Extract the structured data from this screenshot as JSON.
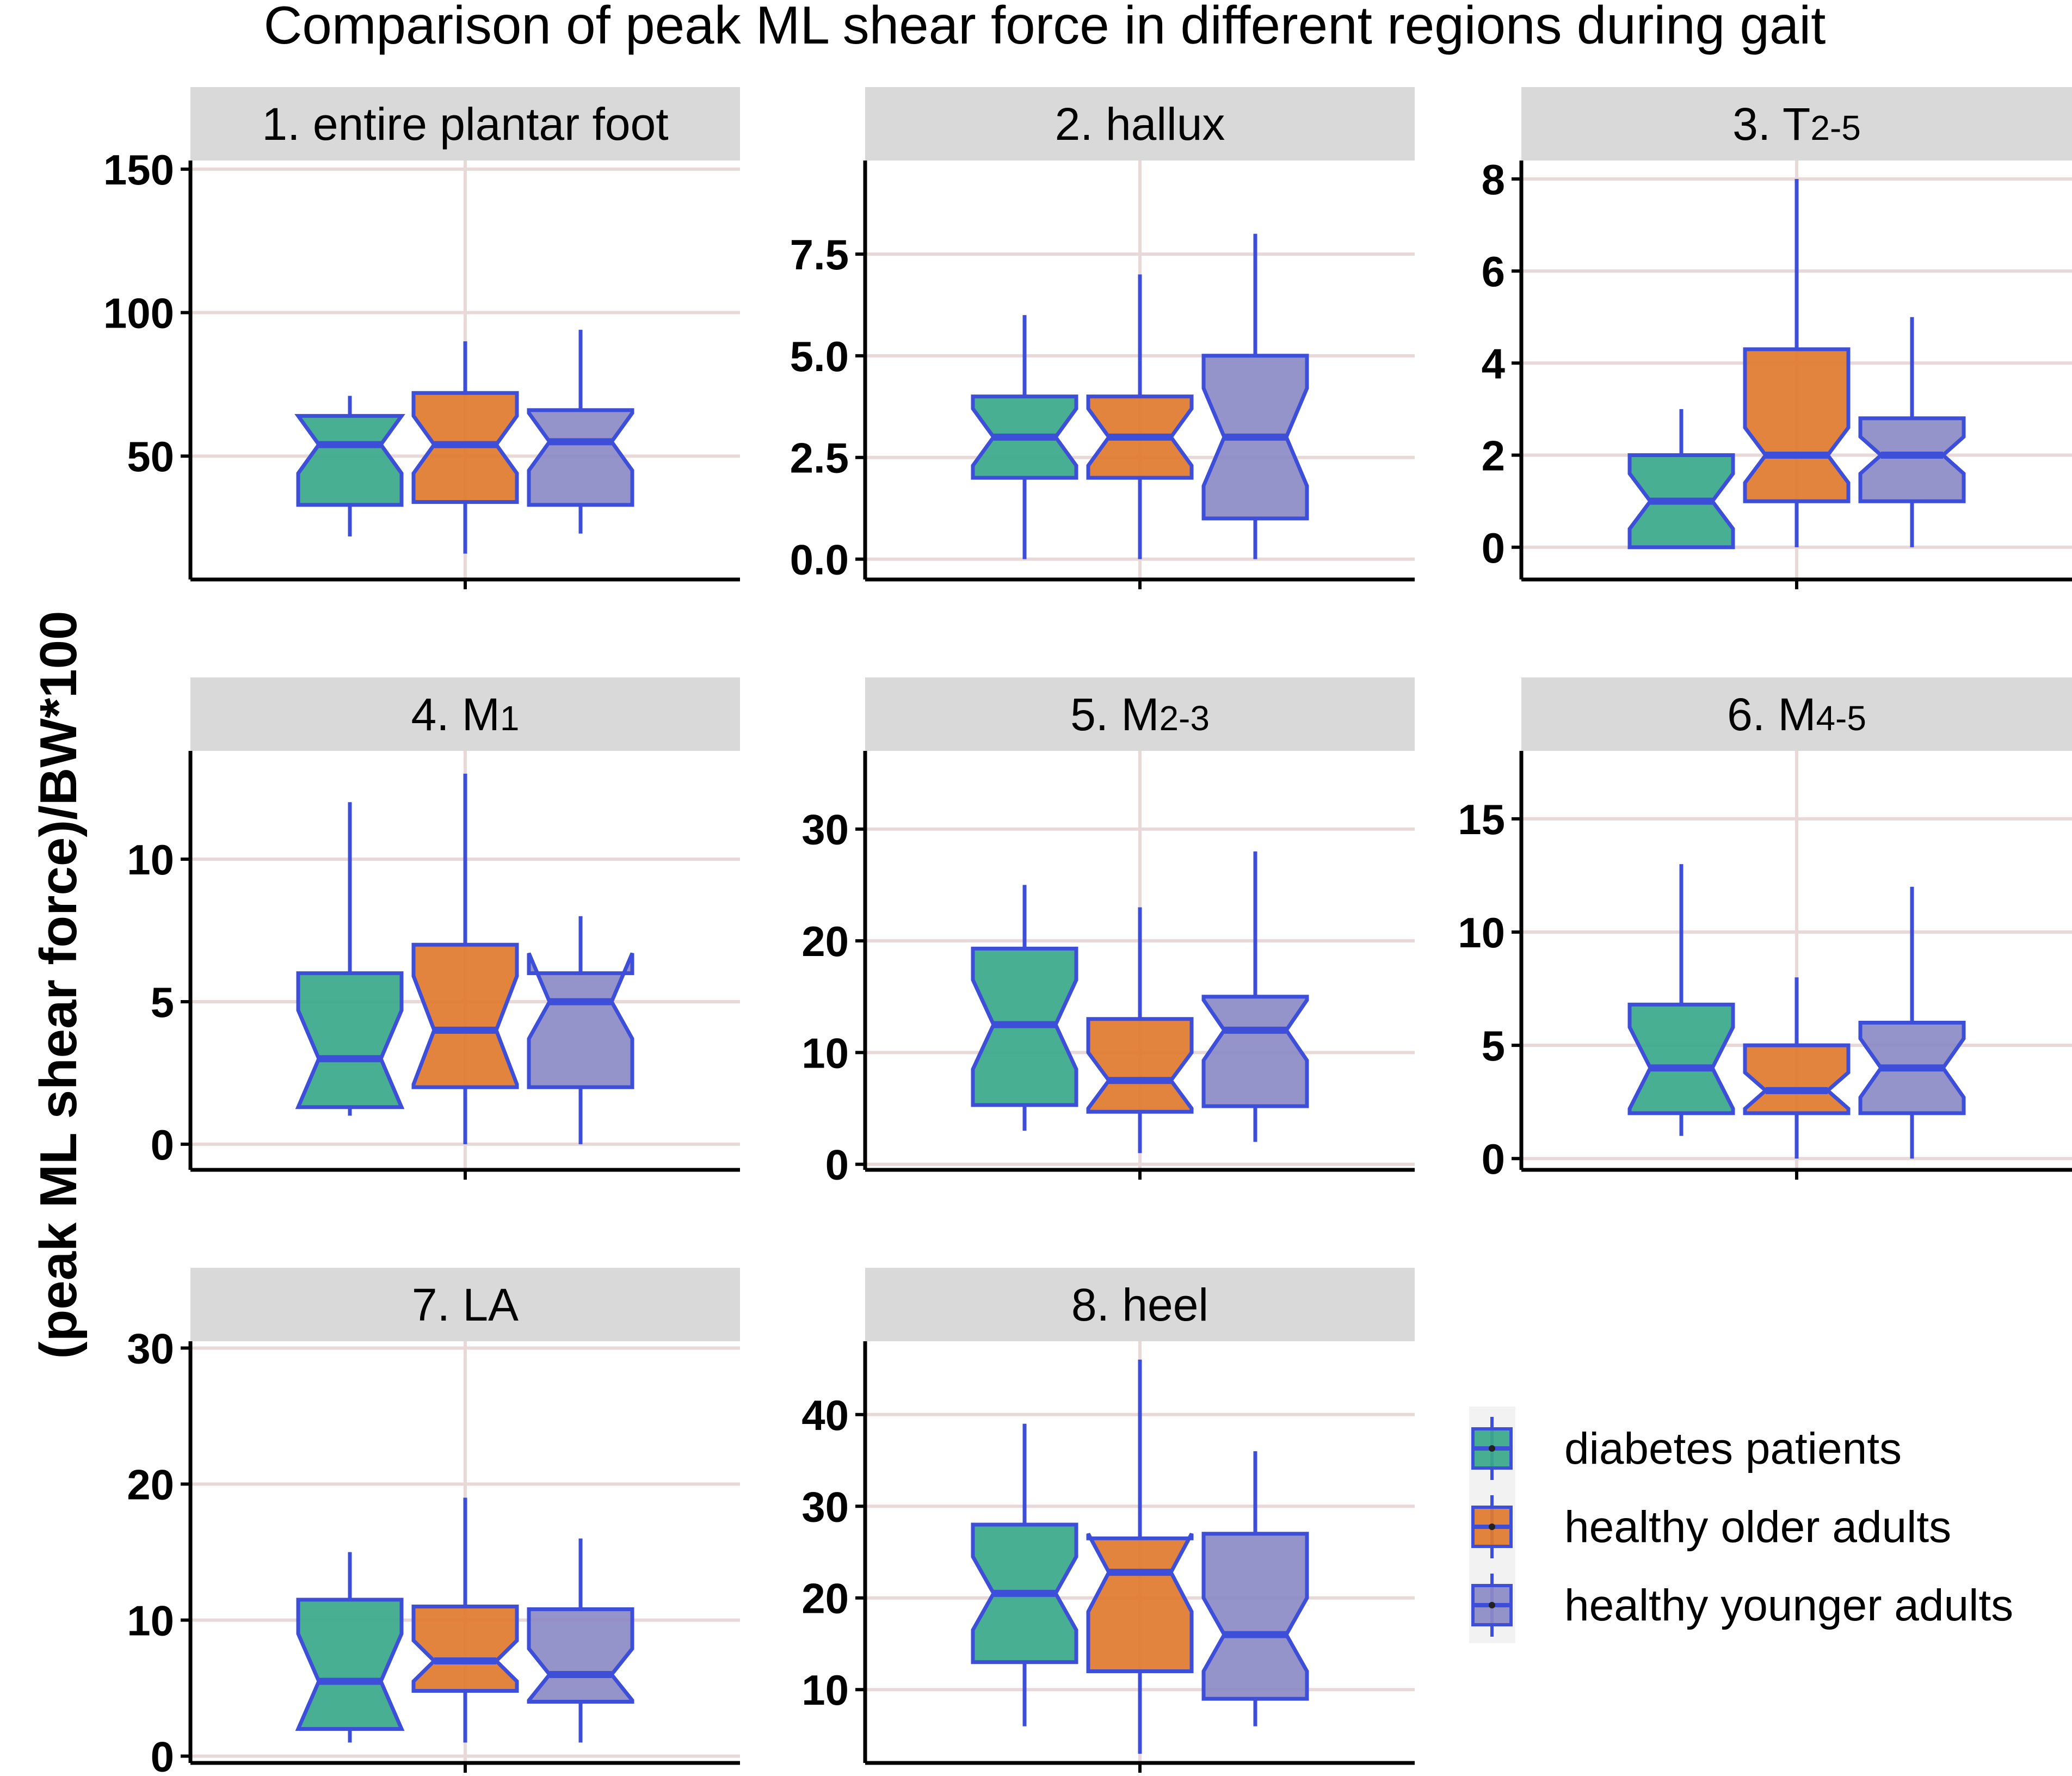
{
  "title": "Comparison of peak ML shear force in different regions during gait",
  "chart_data": {
    "type": "boxplot",
    "notched": true,
    "title": "Comparison of peak ML shear force in different regions during gait",
    "ylabel": "(peak ML shear force)/BW*100",
    "xlabel": "",
    "grid": true,
    "legend_position": "bottom-right",
    "groups": [
      {
        "name": "diabetes patients",
        "color": "#3aa88a"
      },
      {
        "name": "healthy older adults",
        "color": "#e07a2e"
      },
      {
        "name": "healthy younger adults",
        "color": "#8b8ac6"
      }
    ],
    "panels": [
      {
        "label": "1. entire plantar foot",
        "label_main": "1. entire plantar foot",
        "label_sub": "",
        "ylim": [
          7,
          153
        ],
        "yticks": [
          50,
          100,
          150
        ],
        "ytick_labels": [
          "50",
          "100",
          "150"
        ],
        "boxes": [
          {
            "group": "diabetes patients",
            "min": 22,
            "q1": 33,
            "median": 54,
            "q3": 64,
            "max": 71,
            "notch_low": 44,
            "notch_high": 64
          },
          {
            "group": "healthy older adults",
            "min": 16,
            "q1": 34,
            "median": 54,
            "q3": 72,
            "max": 90,
            "notch_low": 44,
            "notch_high": 64
          },
          {
            "group": "healthy younger adults",
            "min": 23,
            "q1": 33,
            "median": 55,
            "q3": 66,
            "max": 94,
            "notch_low": 45,
            "notch_high": 65
          }
        ]
      },
      {
        "label": "2. hallux",
        "label_main": "2. hallux",
        "label_sub": "",
        "ylim": [
          -0.5,
          9.8
        ],
        "yticks": [
          0,
          2.5,
          5,
          7.5
        ],
        "ytick_labels": [
          "0.0",
          "2.5",
          "5.0",
          "7.5"
        ],
        "boxes": [
          {
            "group": "diabetes patients",
            "min": 0,
            "q1": 2,
            "median": 3,
            "q3": 4,
            "max": 6,
            "notch_low": 2.3,
            "notch_high": 3.7
          },
          {
            "group": "healthy older adults",
            "min": 0,
            "q1": 2,
            "median": 3,
            "q3": 4,
            "max": 7,
            "notch_low": 2.3,
            "notch_high": 3.7
          },
          {
            "group": "healthy younger adults",
            "min": 0,
            "q1": 1,
            "median": 3,
            "q3": 5,
            "max": 8,
            "notch_low": 1.8,
            "notch_high": 4.2
          }
        ]
      },
      {
        "label": "3. T2-5",
        "label_main": "3. T",
        "label_sub": "2-5",
        "ylim": [
          -0.7,
          8.4
        ],
        "yticks": [
          0,
          2,
          4,
          6,
          8
        ],
        "ytick_labels": [
          "0",
          "2",
          "4",
          "6",
          "8"
        ],
        "boxes": [
          {
            "group": "diabetes patients",
            "min": 0,
            "q1": 0,
            "median": 1,
            "q3": 2,
            "max": 3,
            "notch_low": 0.4,
            "notch_high": 1.6
          },
          {
            "group": "healthy older adults",
            "min": 0,
            "q1": 1,
            "median": 2,
            "q3": 4.3,
            "max": 8,
            "notch_low": 1.4,
            "notch_high": 2.6
          },
          {
            "group": "healthy younger adults",
            "min": 0,
            "q1": 1,
            "median": 2,
            "q3": 2.8,
            "max": 5,
            "notch_low": 1.6,
            "notch_high": 2.4
          }
        ]
      },
      {
        "label": "4. M1",
        "label_main": "4. M",
        "label_sub": "1",
        "ylim": [
          -0.9,
          13.8
        ],
        "yticks": [
          0,
          5,
          10
        ],
        "ytick_labels": [
          "0",
          "5",
          "10"
        ],
        "boxes": [
          {
            "group": "diabetes patients",
            "min": 1,
            "q1": 1.3,
            "median": 3,
            "q3": 6,
            "max": 12,
            "notch_low": 1.3,
            "notch_high": 4.7
          },
          {
            "group": "healthy older adults",
            "min": 0,
            "q1": 2,
            "median": 4,
            "q3": 7,
            "max": 13,
            "notch_low": 2.1,
            "notch_high": 5.9
          },
          {
            "group": "healthy younger adults",
            "min": 0,
            "q1": 2,
            "median": 5,
            "q3": 6,
            "max": 8,
            "notch_low": 3.7,
            "notch_high": 6.7
          }
        ]
      },
      {
        "label": "5. M2-3",
        "label_main": "5. M",
        "label_sub": "2-3",
        "ylim": [
          -0.5,
          37
        ],
        "yticks": [
          0,
          10,
          20,
          30
        ],
        "ytick_labels": [
          "0",
          "10",
          "20",
          "30"
        ],
        "boxes": [
          {
            "group": "diabetes patients",
            "min": 3,
            "q1": 5.3,
            "median": 12.5,
            "q3": 19.3,
            "max": 25,
            "notch_low": 8.5,
            "notch_high": 16.5
          },
          {
            "group": "healthy older adults",
            "min": 1,
            "q1": 4.7,
            "median": 7.5,
            "q3": 13,
            "max": 23,
            "notch_low": 5,
            "notch_high": 10
          },
          {
            "group": "healthy younger adults",
            "min": 2,
            "q1": 5.2,
            "median": 12,
            "q3": 15,
            "max": 28,
            "notch_low": 9.3,
            "notch_high": 14.7
          }
        ]
      },
      {
        "label": "6. M4-5",
        "label_main": "6. M",
        "label_sub": "4-5",
        "ylim": [
          -0.5,
          18
        ],
        "yticks": [
          0,
          5,
          10,
          15
        ],
        "ytick_labels": [
          "0",
          "5",
          "10",
          "15"
        ],
        "boxes": [
          {
            "group": "diabetes patients",
            "min": 1,
            "q1": 2,
            "median": 4,
            "q3": 6.8,
            "max": 13,
            "notch_low": 2.2,
            "notch_high": 5.8
          },
          {
            "group": "healthy older adults",
            "min": 0,
            "q1": 2,
            "median": 3,
            "q3": 5,
            "max": 8,
            "notch_low": 2.2,
            "notch_high": 3.8
          },
          {
            "group": "healthy younger adults",
            "min": 0,
            "q1": 2,
            "median": 4,
            "q3": 6,
            "max": 12,
            "notch_low": 2.7,
            "notch_high": 5.3
          }
        ]
      },
      {
        "label": "7. LA",
        "label_main": "7. LA",
        "label_sub": "",
        "ylim": [
          -0.5,
          30.5
        ],
        "yticks": [
          0,
          10,
          20,
          30
        ],
        "ytick_labels": [
          "0",
          "10",
          "20",
          "30"
        ],
        "boxes": [
          {
            "group": "diabetes patients",
            "min": 1,
            "q1": 2,
            "median": 5.5,
            "q3": 11.5,
            "max": 15,
            "notch_low": 2,
            "notch_high": 9
          },
          {
            "group": "healthy older adults",
            "min": 1,
            "q1": 4.8,
            "median": 7,
            "q3": 11,
            "max": 19,
            "notch_low": 5.5,
            "notch_high": 8.5
          },
          {
            "group": "healthy younger adults",
            "min": 1,
            "q1": 4,
            "median": 6,
            "q3": 10.8,
            "max": 16,
            "notch_low": 4.1,
            "notch_high": 7.9
          }
        ]
      },
      {
        "label": "8. heel",
        "label_main": "8. heel",
        "label_sub": "",
        "ylim": [
          2,
          48
        ],
        "yticks": [
          10,
          20,
          30,
          40
        ],
        "ytick_labels": [
          "10",
          "20",
          "30",
          "40"
        ],
        "boxes": [
          {
            "group": "diabetes patients",
            "min": 6,
            "q1": 13,
            "median": 20.5,
            "q3": 28,
            "max": 39,
            "notch_low": 16.5,
            "notch_high": 24.5
          },
          {
            "group": "healthy older adults",
            "min": 3,
            "q1": 12,
            "median": 22.8,
            "q3": 26.5,
            "max": 46,
            "notch_low": 18.5,
            "notch_high": 27
          },
          {
            "group": "healthy younger adults",
            "min": 6,
            "q1": 9,
            "median": 16,
            "q3": 27,
            "max": 36,
            "notch_low": 12,
            "notch_high": 20
          }
        ]
      }
    ]
  }
}
